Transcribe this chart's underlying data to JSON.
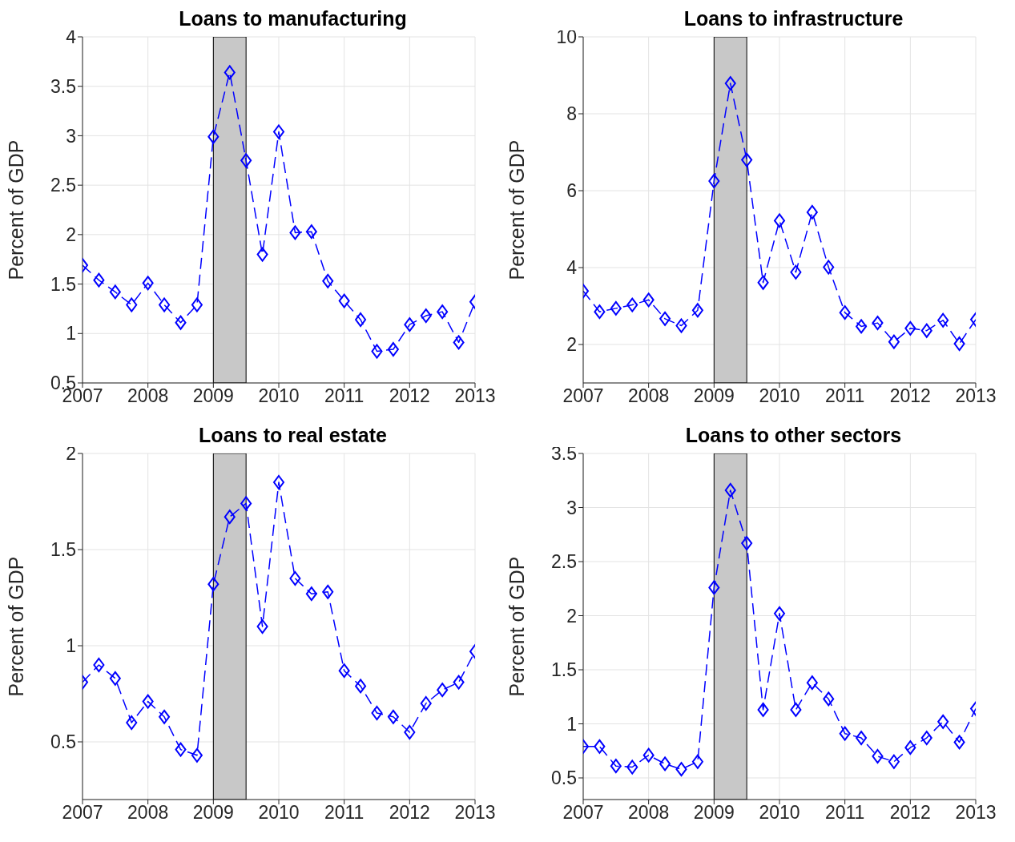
{
  "chart_data": [
    {
      "type": "line",
      "title": "Loans to manufacturing",
      "ylabel": "Percent of GDP",
      "x": [
        2007,
        2007.25,
        2007.5,
        2007.75,
        2008,
        2008.25,
        2008.5,
        2008.75,
        2009,
        2009.25,
        2009.5,
        2009.75,
        2010,
        2010.25,
        2010.5,
        2010.75,
        2011,
        2011.25,
        2011.5,
        2011.75,
        2012,
        2012.25,
        2012.5,
        2012.75,
        2013
      ],
      "values": [
        1.69,
        1.54,
        1.42,
        1.29,
        1.51,
        1.29,
        1.11,
        1.29,
        2.99,
        3.64,
        2.75,
        1.8,
        3.04,
        2.02,
        2.03,
        1.53,
        1.33,
        1.14,
        0.82,
        0.84,
        1.09,
        1.18,
        1.22,
        0.91,
        1.32
      ],
      "color": "#0000ff",
      "marker": "diamond",
      "line_style": "dashed",
      "grid": true,
      "xlim": [
        2007,
        2013
      ],
      "xticks": [
        2007,
        2008,
        2009,
        2010,
        2011,
        2012,
        2013
      ],
      "ylim": [
        0.5,
        4
      ],
      "yticks": [
        0.5,
        1,
        1.5,
        2,
        2.5,
        3,
        3.5,
        4
      ],
      "bands": [
        {
          "axis": "x",
          "from": 2009,
          "to": 2009.5,
          "color": "#c8c8c8"
        }
      ]
    },
    {
      "type": "line",
      "title": "Loans to infrastructure",
      "ylabel": "Percent of GDP",
      "x": [
        2007,
        2007.25,
        2007.5,
        2007.75,
        2008,
        2008.25,
        2008.5,
        2008.75,
        2009,
        2009.25,
        2009.5,
        2009.75,
        2010,
        2010.25,
        2010.5,
        2010.75,
        2011,
        2011.25,
        2011.5,
        2011.75,
        2012,
        2012.25,
        2012.5,
        2012.75,
        2013
      ],
      "values": [
        3.39,
        2.85,
        2.94,
        3.03,
        3.16,
        2.67,
        2.49,
        2.89,
        6.25,
        8.79,
        6.8,
        3.61,
        5.22,
        3.88,
        5.44,
        4.01,
        2.83,
        2.47,
        2.56,
        2.07,
        2.42,
        2.36,
        2.63,
        2.02,
        2.65
      ],
      "color": "#0000ff",
      "marker": "diamond",
      "line_style": "dashed",
      "grid": true,
      "xlim": [
        2007,
        2013
      ],
      "xticks": [
        2007,
        2008,
        2009,
        2010,
        2011,
        2012,
        2013
      ],
      "ylim": [
        1,
        10
      ],
      "yticks": [
        2,
        4,
        6,
        8,
        10
      ],
      "bands": [
        {
          "axis": "x",
          "from": 2009,
          "to": 2009.5,
          "color": "#c8c8c8"
        }
      ]
    },
    {
      "type": "line",
      "title": "Loans to real estate",
      "ylabel": "Percent of GDP",
      "x": [
        2007,
        2007.25,
        2007.5,
        2007.75,
        2008,
        2008.25,
        2008.5,
        2008.75,
        2009,
        2009.25,
        2009.5,
        2009.75,
        2010,
        2010.25,
        2010.5,
        2010.75,
        2011,
        2011.25,
        2011.5,
        2011.75,
        2012,
        2012.25,
        2012.5,
        2012.75,
        2013
      ],
      "values": [
        0.81,
        0.9,
        0.83,
        0.6,
        0.71,
        0.63,
        0.46,
        0.43,
        1.32,
        1.67,
        1.74,
        1.1,
        1.85,
        1.35,
        1.27,
        1.28,
        0.87,
        0.79,
        0.65,
        0.63,
        0.55,
        0.7,
        0.77,
        0.81,
        0.97
      ],
      "color": "#0000ff",
      "marker": "diamond",
      "line_style": "dashed",
      "grid": true,
      "xlim": [
        2007,
        2013
      ],
      "xticks": [
        2007,
        2008,
        2009,
        2010,
        2011,
        2012,
        2013
      ],
      "ylim": [
        0.2,
        2
      ],
      "yticks": [
        0.5,
        1,
        1.5,
        2
      ],
      "bands": [
        {
          "axis": "x",
          "from": 2009,
          "to": 2009.5,
          "color": "#c8c8c8"
        }
      ]
    },
    {
      "type": "line",
      "title": "Loans to other sectors",
      "ylabel": "Percent of GDP",
      "x": [
        2007,
        2007.25,
        2007.5,
        2007.75,
        2008,
        2008.25,
        2008.5,
        2008.75,
        2009,
        2009.25,
        2009.5,
        2009.75,
        2010,
        2010.25,
        2010.5,
        2010.75,
        2011,
        2011.25,
        2011.5,
        2011.75,
        2012,
        2012.25,
        2012.5,
        2012.75,
        2013
      ],
      "values": [
        0.79,
        0.79,
        0.61,
        0.6,
        0.71,
        0.63,
        0.58,
        0.65,
        2.26,
        3.16,
        2.67,
        1.13,
        2.02,
        1.13,
        1.38,
        1.23,
        0.91,
        0.87,
        0.7,
        0.65,
        0.78,
        0.87,
        1.02,
        0.83,
        1.14
      ],
      "color": "#0000ff",
      "marker": "diamond",
      "line_style": "dashed",
      "grid": true,
      "xlim": [
        2007,
        2013
      ],
      "xticks": [
        2007,
        2008,
        2009,
        2010,
        2011,
        2012,
        2013
      ],
      "ylim": [
        0.3,
        3.5
      ],
      "yticks": [
        0.5,
        1,
        1.5,
        2,
        2.5,
        3,
        3.5
      ],
      "bands": [
        {
          "axis": "x",
          "from": 2009,
          "to": 2009.5,
          "color": "#c8c8c8"
        }
      ]
    }
  ]
}
